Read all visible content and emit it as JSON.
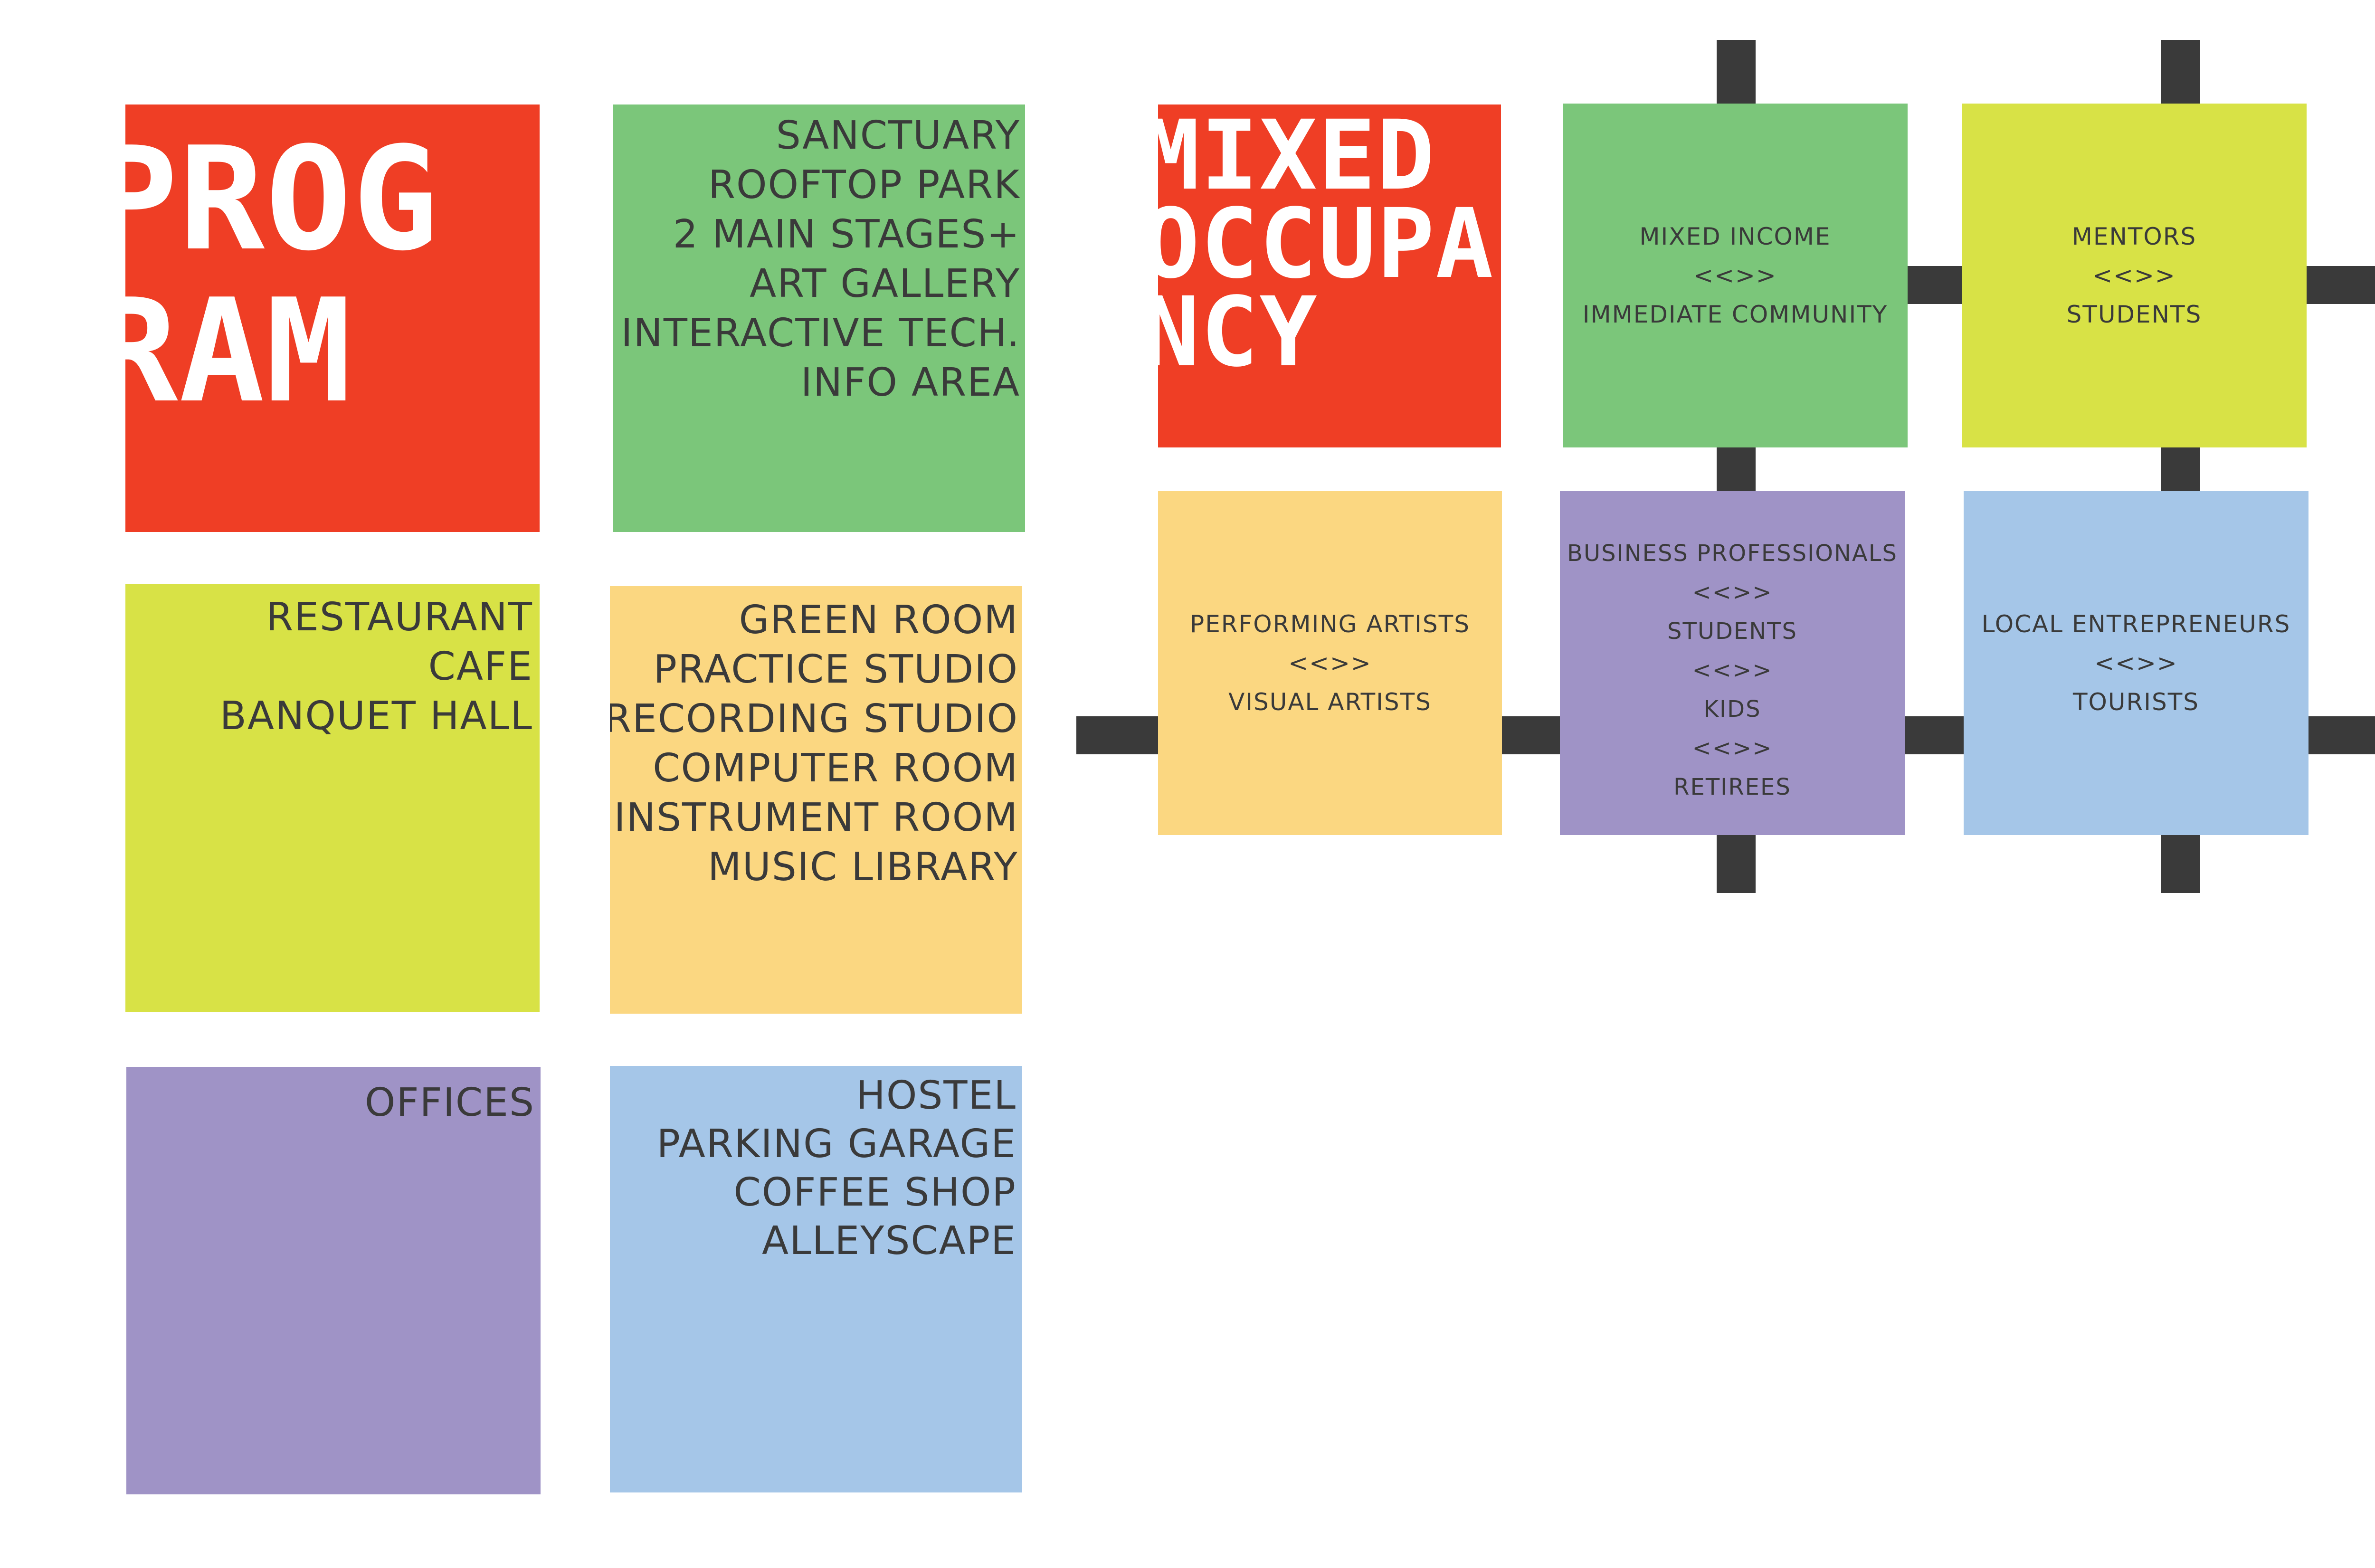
{
  "colors": {
    "red": "#EF3E25",
    "green": "#7BC67A",
    "yellow_green": "#D8E246",
    "yellow": "#FBD781",
    "purple": "#9F93C6",
    "blue": "#A5C6E8",
    "connector": "#3A3A3A",
    "title_text": "#FFFFFF",
    "body_text": "#3A3A3A"
  },
  "program": {
    "title_lines": [
      "PROG",
      "RAM"
    ],
    "boxes": [
      {
        "id": "green",
        "items": [
          "SANCTUARY",
          "ROOFTOP PARK",
          "2 MAIN STAGES+",
          "ART GALLERY",
          "INTERACTIVE TECH.",
          "INFO AREA"
        ]
      },
      {
        "id": "yellow_green",
        "items": [
          "RESTAURANT",
          "CAFE",
          "BANQUET HALL"
        ]
      },
      {
        "id": "yellow",
        "items": [
          "GREEN ROOM",
          "PRACTICE STUDIO",
          "RECORDING STUDIO",
          "COMPUTER ROOM",
          "INSTRUMENT ROOM",
          "MUSIC LIBRARY"
        ]
      },
      {
        "id": "purple",
        "items": [
          "OFFICES"
        ]
      },
      {
        "id": "blue",
        "items": [
          "HOSTEL",
          "PARKING GARAGE",
          "COFFEE SHOP",
          "ALLEYSCAPE"
        ]
      }
    ]
  },
  "mixed_occupancy": {
    "title_lines": [
      "MIXED",
      "OCCUPA",
      "NCY"
    ],
    "boxes": [
      {
        "id": "green",
        "lines": [
          "MIXED INCOME",
          "<<>>",
          "IMMEDIATE COMMUNITY"
        ]
      },
      {
        "id": "yellow_green",
        "lines": [
          "MENTORS",
          "<<>>",
          "STUDENTS"
        ]
      },
      {
        "id": "yellow",
        "lines": [
          "PERFORMING ARTISTS",
          "<<>>",
          "VISUAL ARTISTS"
        ]
      },
      {
        "id": "purple",
        "lines": [
          "BUSINESS PROFESSIONALS",
          "<<>>",
          "STUDENTS",
          "<<>>",
          "KIDS",
          "<<>>",
          "RETIREES"
        ]
      },
      {
        "id": "blue",
        "lines": [
          "LOCAL ENTREPRENEURS",
          "<<>>",
          "TOURISTS"
        ]
      }
    ]
  }
}
